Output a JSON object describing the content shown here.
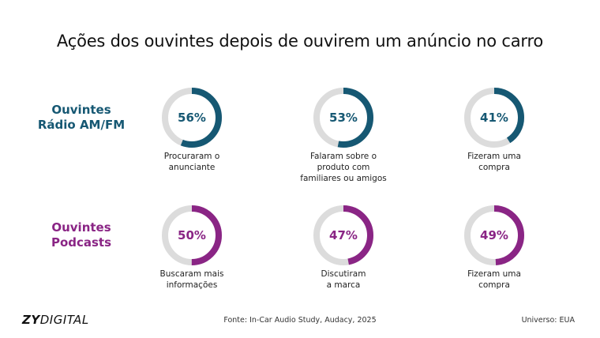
{
  "title": "Ações dos ouvintes depois de ouvirem um anúncio no carro",
  "colors": {
    "radio": "#165873",
    "podcast": "#8a2585",
    "track": "#dcdcdc"
  },
  "chart_data": {
    "type": "donut",
    "title": "Ações dos ouvintes depois de ouvirem um anúncio no carro",
    "series": [
      {
        "name": "Ouvintes Rádio AM/FM",
        "label_line1": "Ouvintes",
        "label_line2": "Rádio AM/FM",
        "color": "#165873",
        "items": [
          {
            "value": 56,
            "label": "56%",
            "caption_lines": [
              "Procuraram o",
              "anunciante"
            ]
          },
          {
            "value": 53,
            "label": "53%",
            "caption_lines": [
              "Falaram sobre o",
              "produto com",
              "familiares ou amigos"
            ]
          },
          {
            "value": 41,
            "label": "41%",
            "caption_lines": [
              "Fizeram uma",
              "compra"
            ]
          }
        ]
      },
      {
        "name": "Ouvintes Podcasts",
        "label_line1": "Ouvintes",
        "label_line2": "Podcasts",
        "color": "#8a2585",
        "items": [
          {
            "value": 50,
            "label": "50%",
            "caption_lines": [
              "Buscaram mais",
              "informações"
            ]
          },
          {
            "value": 47,
            "label": "47%",
            "caption_lines": [
              "Discutiram",
              "a marca"
            ]
          },
          {
            "value": 49,
            "label": "49%",
            "caption_lines": [
              "Fizeram uma",
              "compra"
            ]
          }
        ]
      }
    ],
    "unit": "%",
    "max": 100
  },
  "footer": {
    "logo_bold": "ZY",
    "logo_light": "DIGITAL",
    "source": "Fonte: In-Car Audio Study, Audacy, 2025",
    "universe": "Universo: EUA"
  }
}
